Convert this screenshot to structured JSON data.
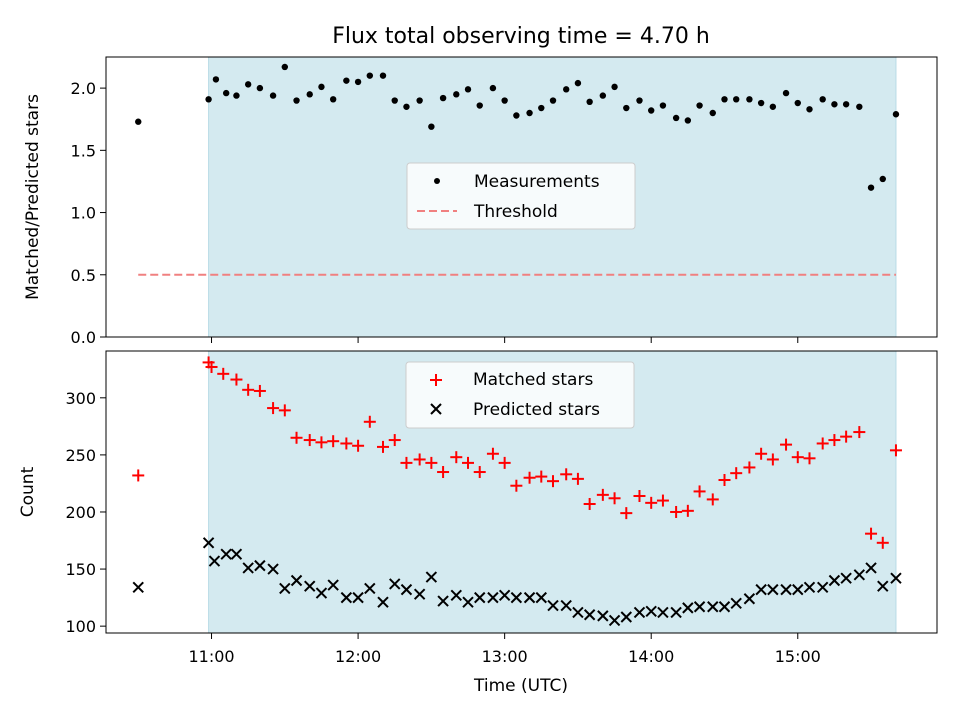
{
  "title": "Flux total observing time = 4.70 h",
  "xlabel": "Time (UTC)",
  "xticks": [
    {
      "h": 11,
      "label": "11:00"
    },
    {
      "h": 12,
      "label": "12:00"
    },
    {
      "h": 13,
      "label": "13:00"
    },
    {
      "h": 14,
      "label": "14:00"
    },
    {
      "h": 15,
      "label": "15:00"
    }
  ],
  "colors": {
    "span": "#d4eaf0",
    "span_edge": "#b8dbe6",
    "measurements": "#000000",
    "threshold": "#f08080",
    "matched": "#ff0000",
    "predicted": "#000000"
  },
  "chart_data": [
    {
      "type": "scatter",
      "ylabel": "Matched/Predicted stars",
      "xlim_hours": [
        10.28,
        15.95
      ],
      "ylim": [
        0.0,
        2.25
      ],
      "yticks": [
        "0.0",
        "0.5",
        "1.0",
        "1.5",
        "2.0"
      ],
      "shaded_span_hours": [
        10.98,
        15.67
      ],
      "legend_position": "center",
      "series": [
        {
          "name": "Measurements",
          "marker": "dot",
          "x": [
            10.5,
            10.98,
            11.03,
            11.1,
            11.17,
            11.25,
            11.33,
            11.42,
            11.5,
            11.58,
            11.67,
            11.75,
            11.83,
            11.92,
            12.0,
            12.08,
            12.17,
            12.25,
            12.33,
            12.42,
            12.5,
            12.58,
            12.67,
            12.75,
            12.83,
            12.92,
            13.0,
            13.08,
            13.17,
            13.25,
            13.33,
            13.42,
            13.5,
            13.58,
            13.67,
            13.75,
            13.83,
            13.92,
            14.0,
            14.08,
            14.17,
            14.25,
            14.33,
            14.42,
            14.5,
            14.58,
            14.67,
            14.75,
            14.83,
            14.92,
            15.0,
            15.08,
            15.17,
            15.25,
            15.33,
            15.42,
            15.5,
            15.58,
            15.67
          ],
          "y": [
            1.73,
            1.91,
            2.07,
            1.96,
            1.94,
            2.03,
            2.0,
            1.94,
            2.17,
            1.9,
            1.95,
            2.01,
            1.91,
            2.06,
            2.05,
            2.1,
            2.1,
            1.9,
            1.85,
            1.9,
            1.69,
            1.92,
            1.95,
            1.99,
            1.86,
            2.0,
            1.9,
            1.78,
            1.8,
            1.84,
            1.9,
            1.99,
            2.04,
            1.89,
            1.94,
            2.01,
            1.84,
            1.9,
            1.82,
            1.86,
            1.76,
            1.74,
            1.86,
            1.8,
            1.91,
            1.91,
            1.91,
            1.88,
            1.85,
            1.96,
            1.88,
            1.83,
            1.91,
            1.87,
            1.87,
            1.85,
            1.2,
            1.27,
            1.79
          ]
        },
        {
          "name": "Threshold",
          "style": "dashed",
          "x": [
            10.5,
            15.67
          ],
          "y": [
            0.5,
            0.5
          ]
        }
      ]
    },
    {
      "type": "scatter",
      "ylabel": "Count",
      "xlim_hours": [
        10.28,
        15.95
      ],
      "ylim": [
        94,
        341
      ],
      "yticks": [
        "100",
        "150",
        "200",
        "250",
        "300"
      ],
      "shaded_span_hours": [
        10.98,
        15.67
      ],
      "legend_position": "upper center",
      "series": [
        {
          "name": "Matched stars",
          "marker": "plus",
          "x": [
            10.5,
            10.98,
            11.0,
            11.08,
            11.17,
            11.25,
            11.33,
            11.42,
            11.5,
            11.58,
            11.67,
            11.75,
            11.83,
            11.92,
            12.0,
            12.08,
            12.17,
            12.25,
            12.33,
            12.42,
            12.5,
            12.58,
            12.67,
            12.75,
            12.83,
            12.92,
            13.0,
            13.08,
            13.17,
            13.25,
            13.33,
            13.42,
            13.5,
            13.58,
            13.67,
            13.75,
            13.83,
            13.92,
            14.0,
            14.08,
            14.17,
            14.25,
            14.33,
            14.42,
            14.5,
            14.58,
            14.67,
            14.75,
            14.83,
            14.92,
            15.0,
            15.08,
            15.17,
            15.25,
            15.33,
            15.42,
            15.5,
            15.58,
            15.67
          ],
          "y": [
            232,
            331,
            327,
            321,
            316,
            307,
            306,
            291,
            289,
            265,
            263,
            261,
            262,
            260,
            258,
            279,
            257,
            263,
            243,
            246,
            243,
            235,
            248,
            243,
            235,
            251,
            243,
            223,
            230,
            231,
            227,
            233,
            229,
            207,
            215,
            212,
            199,
            214,
            208,
            210,
            200,
            201,
            218,
            211,
            228,
            234,
            239,
            251,
            246,
            259,
            248,
            247,
            260,
            263,
            266,
            270,
            181,
            173,
            254
          ]
        },
        {
          "name": "Predicted stars",
          "marker": "x",
          "x": [
            10.5,
            10.98,
            11.02,
            11.1,
            11.17,
            11.25,
            11.33,
            11.42,
            11.5,
            11.58,
            11.67,
            11.75,
            11.83,
            11.92,
            12.0,
            12.08,
            12.17,
            12.25,
            12.33,
            12.42,
            12.5,
            12.58,
            12.67,
            12.75,
            12.83,
            12.92,
            13.0,
            13.08,
            13.17,
            13.25,
            13.33,
            13.42,
            13.5,
            13.58,
            13.67,
            13.75,
            13.83,
            13.92,
            14.0,
            14.08,
            14.17,
            14.25,
            14.33,
            14.42,
            14.5,
            14.58,
            14.67,
            14.75,
            14.83,
            14.92,
            15.0,
            15.08,
            15.17,
            15.25,
            15.33,
            15.42,
            15.5,
            15.58,
            15.67
          ],
          "y": [
            134,
            173,
            157,
            163,
            163,
            151,
            153,
            150,
            133,
            140,
            135,
            129,
            136,
            125,
            125,
            133,
            121,
            137,
            132,
            128,
            143,
            122,
            127,
            121,
            125,
            125,
            127,
            125,
            125,
            125,
            118,
            118,
            112,
            110,
            109,
            105,
            108,
            112,
            113,
            112,
            112,
            116,
            117,
            117,
            117,
            120,
            124,
            132,
            132,
            132,
            132,
            134,
            134,
            140,
            142,
            145,
            151,
            135,
            142
          ]
        }
      ]
    }
  ]
}
